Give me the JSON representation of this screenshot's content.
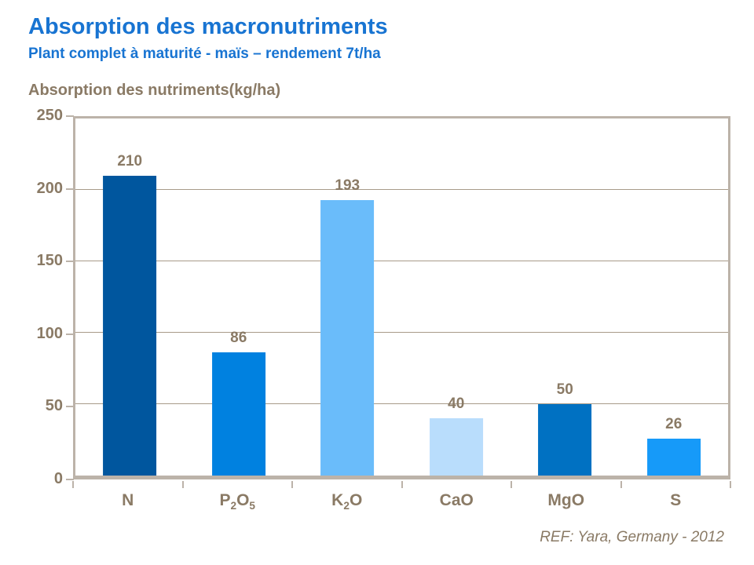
{
  "header": {
    "title": "Absorption des macronutriments",
    "subtitle": "Plant complet à maturité - maïs – rendement 7t/ha"
  },
  "chart_data": {
    "type": "bar",
    "title": "Absorption des macronutriments",
    "subtitle": "Plant complet à maturité - maïs – rendement 7t/ha",
    "axis_title": "Absorption des nutriments(kg/ha)",
    "categories": [
      {
        "name": "N",
        "parts": [
          {
            "t": "N",
            "sub": false
          }
        ]
      },
      {
        "name": "P2O5",
        "parts": [
          {
            "t": "P",
            "sub": false
          },
          {
            "t": "2",
            "sub": true
          },
          {
            "t": "O",
            "sub": false
          },
          {
            "t": "5",
            "sub": true
          }
        ]
      },
      {
        "name": "K2O",
        "parts": [
          {
            "t": "K",
            "sub": false
          },
          {
            "t": "2",
            "sub": true
          },
          {
            "t": "O",
            "sub": false
          }
        ]
      },
      {
        "name": "CaO",
        "parts": [
          {
            "t": "CaO",
            "sub": false
          }
        ]
      },
      {
        "name": "MgO",
        "parts": [
          {
            "t": "MgO",
            "sub": false
          }
        ]
      },
      {
        "name": "S",
        "parts": [
          {
            "t": "S",
            "sub": false
          }
        ]
      }
    ],
    "values": [
      210,
      86,
      193,
      40,
      50,
      26
    ],
    "bar_colors": [
      "#00569E",
      "#0081E0",
      "#6ABCFA",
      "#B9DDFC",
      "#0071C2",
      "#169AF9"
    ],
    "yticks": [
      0,
      50,
      100,
      150,
      200,
      250
    ],
    "ylim": [
      0,
      250
    ],
    "grid": true,
    "legend": "none",
    "value_labels": true
  },
  "footer": {
    "ref": "REF: Yara, Germany - 2012"
  },
  "colors": {
    "title_blue": "#1874D2",
    "label_taupe": "#8A7A65",
    "frame": "#BCB3A9",
    "gridline": "#A89B89"
  }
}
